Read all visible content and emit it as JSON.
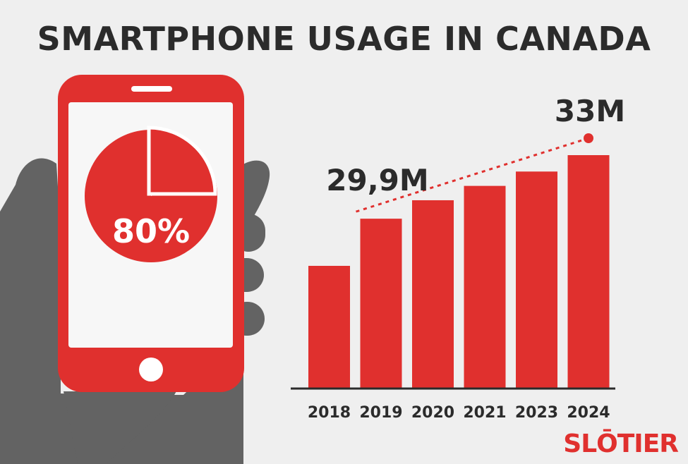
{
  "title": "SMARTPHONE USAGE IN CANADA",
  "phone": {
    "percent_label": "80%",
    "percent_value": 80
  },
  "annotations": {
    "start_label": "29,9M",
    "end_label": "33M"
  },
  "brand": {
    "logo_text": "SLŌTIER"
  },
  "colors": {
    "accent": "#e0302e",
    "hand": "#636363",
    "text": "#2b2b2b",
    "background": "#efefef"
  },
  "chart_data": {
    "type": "bar",
    "categories": [
      "2018",
      "2019",
      "2020",
      "2021",
      "2023",
      "2024"
    ],
    "values": [
      27.6,
      29.9,
      30.8,
      31.5,
      32.2,
      33.0
    ],
    "ylim": [
      25.0,
      33.0
    ],
    "annotations": [
      {
        "category": "2019",
        "label": "29,9M"
      },
      {
        "category": "2024",
        "label": "33M"
      }
    ],
    "trend": "dotted"
  }
}
